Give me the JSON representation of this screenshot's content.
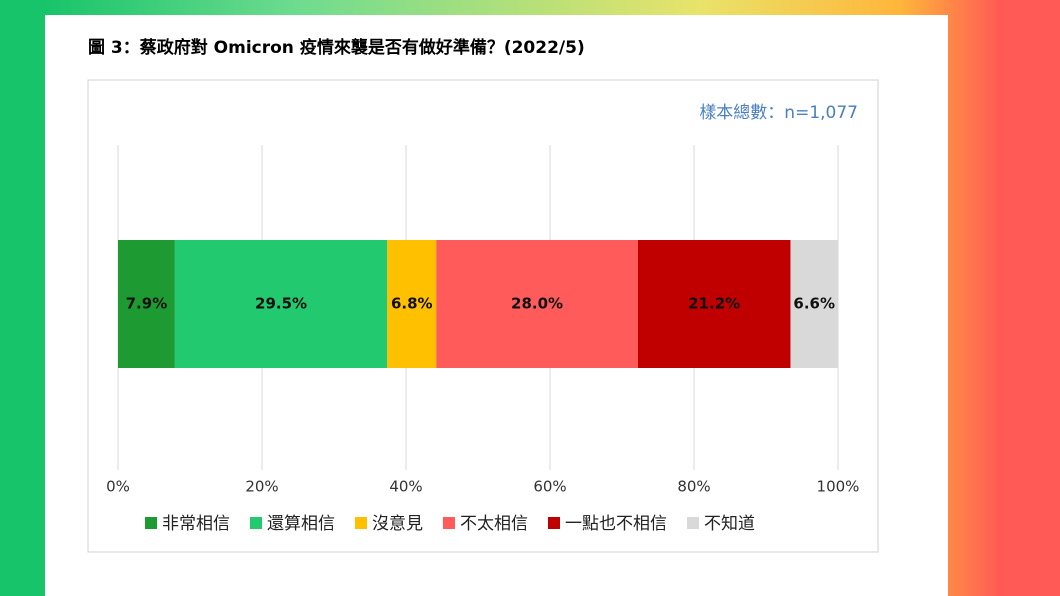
{
  "chart_data": {
    "type": "bar",
    "orientation": "horizontal",
    "stacked": true,
    "title": "圖 3：蔡政府對 Omicron 疫情來襲是否有做好準備？(2022/5)",
    "annotation": "樣本總數：n=1,077",
    "categories": [
      null
    ],
    "series": [
      {
        "name": "非常相信",
        "color": "#1e9a32",
        "values": [
          7.9
        ],
        "value_labels": [
          "7.9%"
        ]
      },
      {
        "name": "還算相信",
        "color": "#22c96e",
        "values": [
          29.5
        ],
        "value_labels": [
          "29.5%"
        ]
      },
      {
        "name": "沒意見",
        "color": "#ffc000",
        "values": [
          6.8
        ],
        "value_labels": [
          "6.8%"
        ]
      },
      {
        "name": "不太相信",
        "color": "#ff5b5b",
        "values": [
          28.0
        ],
        "value_labels": [
          "28.0%"
        ]
      },
      {
        "name": "一點也不相信",
        "color": "#c00000",
        "values": [
          21.2
        ],
        "value_labels": [
          "21.2%"
        ]
      },
      {
        "name": "不知道",
        "color": "#d9d9d9",
        "values": [
          6.6
        ],
        "value_labels": [
          "6.6%"
        ]
      }
    ],
    "xlim": [
      0,
      100
    ],
    "xticks": [
      {
        "value": 0,
        "label": "0%"
      },
      {
        "value": 20,
        "label": "20%"
      },
      {
        "value": 40,
        "label": "40%"
      },
      {
        "value": 60,
        "label": "60%"
      },
      {
        "value": 80,
        "label": "80%"
      },
      {
        "value": 100,
        "label": "100%"
      }
    ],
    "grid": true,
    "legend": "bottom"
  }
}
